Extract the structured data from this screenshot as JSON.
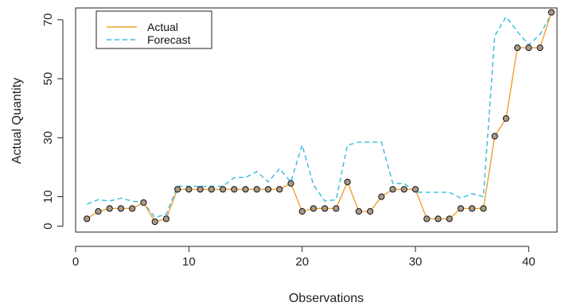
{
  "chart_data": {
    "type": "line",
    "xlabel": "Observations",
    "ylabel": "Actual Quantity",
    "xlim": [
      0,
      42.5
    ],
    "ylim": [
      -2,
      74
    ],
    "x_ticks": [
      0,
      10,
      20,
      30,
      40
    ],
    "y_ticks": [
      0,
      10,
      30,
      50,
      70
    ],
    "x_tick_labels": [
      "0",
      "10",
      "20",
      "30",
      "40"
    ],
    "y_tick_labels": [
      "0",
      "10",
      "30",
      "50",
      "70"
    ],
    "legend_position": "top-left",
    "series": [
      {
        "name": "Actual",
        "style": "solid",
        "color": "#f0a030",
        "markers": "circle",
        "x": [
          1,
          2,
          3,
          4,
          5,
          6,
          7,
          8,
          9,
          10,
          11,
          12,
          13,
          14,
          15,
          16,
          17,
          18,
          19,
          20,
          21,
          22,
          23,
          24,
          25,
          26,
          27,
          28,
          29,
          30,
          31,
          32,
          33,
          34,
          35,
          36,
          37,
          38,
          39,
          40,
          41,
          42
        ],
        "values": [
          2.5,
          5,
          6,
          6,
          6,
          8,
          1.5,
          2.5,
          12.5,
          12.5,
          12.5,
          12.5,
          12.5,
          12.5,
          12.5,
          12.5,
          12.5,
          12.5,
          14.5,
          5,
          6,
          6,
          6,
          15,
          5,
          5,
          10,
          12.5,
          12.5,
          12.5,
          2.5,
          2.5,
          2.5,
          6,
          6,
          6,
          30.5,
          36.5,
          60.5,
          60.5,
          60.5,
          72.5
        ]
      },
      {
        "name": "Forecast",
        "style": "dashed",
        "color": "#33bbdd",
        "x": [
          1,
          2,
          3,
          4,
          5,
          6,
          7,
          8,
          9,
          10,
          11,
          12,
          13,
          14,
          15,
          16,
          17,
          18,
          19,
          20,
          21,
          22,
          23,
          24,
          25,
          26,
          27,
          28,
          29,
          30,
          31,
          32,
          33,
          34,
          35,
          36,
          37,
          38,
          39,
          40,
          41,
          42
        ],
        "values": [
          7.5,
          9,
          8.5,
          9.5,
          8.5,
          8,
          3,
          4,
          13.5,
          13.5,
          13.5,
          13.5,
          13.5,
          16.5,
          16.5,
          18.5,
          15,
          19.5,
          15,
          27.5,
          14,
          8.5,
          9,
          27.5,
          28.5,
          28.5,
          28.5,
          14.5,
          14.5,
          11.5,
          11.5,
          11.5,
          11.5,
          9.5,
          11,
          10,
          64.5,
          71,
          66,
          61.5,
          65,
          72
        ]
      }
    ]
  }
}
